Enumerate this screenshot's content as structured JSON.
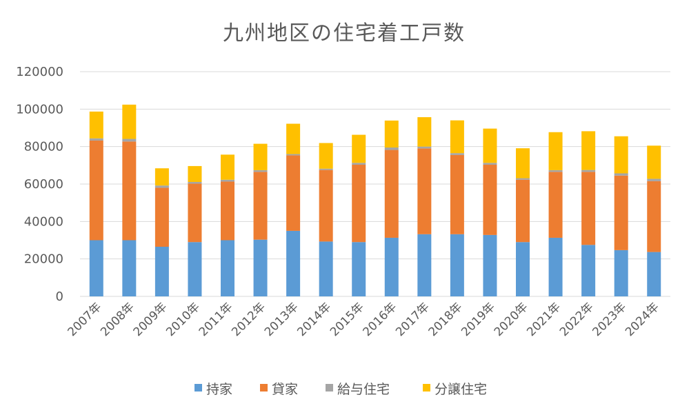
{
  "chart_data": {
    "type": "bar",
    "stacked": true,
    "title": "九州地区の住宅着工戸数",
    "xlabel": "",
    "ylabel": "",
    "ylim": [
      0,
      120000
    ],
    "yticks": [
      0,
      20000,
      40000,
      60000,
      80000,
      100000,
      120000
    ],
    "ytick_labels": [
      "0",
      "20000",
      "40000",
      "60000",
      "80000",
      "100000",
      "120000"
    ],
    "grid": true,
    "legend_position": "bottom",
    "categories": [
      "2007年",
      "2008年",
      "2009年",
      "2010年",
      "2011年",
      "2012年",
      "2013年",
      "2014年",
      "2015年",
      "2016年",
      "2017年",
      "2018年",
      "2019年",
      "2020年",
      "2021年",
      "2022年",
      "2023年",
      "2024年"
    ],
    "series": [
      {
        "name": "持家",
        "color": "#5b9bd5",
        "values": [
          30000,
          30000,
          26500,
          29000,
          30000,
          30300,
          35000,
          29300,
          29000,
          31300,
          33200,
          33200,
          32800,
          29000,
          31300,
          27500,
          24700,
          23700
        ]
      },
      {
        "name": "貸家",
        "color": "#ed7d31",
        "values": [
          53200,
          52700,
          31500,
          31200,
          31300,
          36200,
          40300,
          38200,
          41300,
          46900,
          45800,
          42300,
          37500,
          33300,
          35200,
          39000,
          39800,
          37800
        ]
      },
      {
        "name": "給与住宅",
        "color": "#a5a5a5",
        "values": [
          1200,
          1400,
          1200,
          900,
          1000,
          900,
          700,
          700,
          1000,
          1300,
          1000,
          1000,
          1000,
          800,
          900,
          1000,
          1200,
          1300
        ]
      },
      {
        "name": "分譲住宅",
        "color": "#ffc000",
        "values": [
          14300,
          18300,
          9200,
          8500,
          13400,
          14100,
          16200,
          13700,
          15000,
          14400,
          15700,
          17500,
          18300,
          16000,
          20300,
          20700,
          19800,
          17700
        ]
      }
    ]
  }
}
